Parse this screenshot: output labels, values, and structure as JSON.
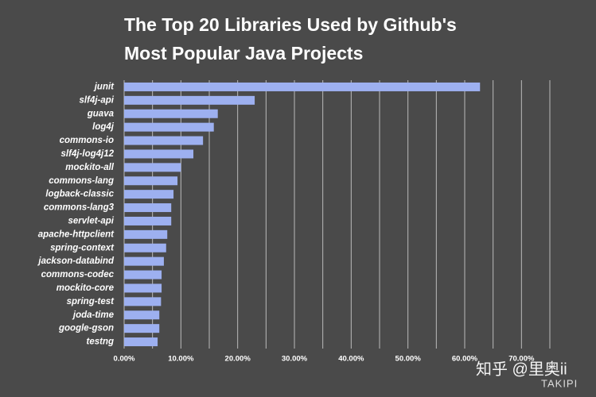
{
  "chart_data": {
    "type": "barh",
    "title": [
      "The Top 20 Libraries Used by Github's",
      "Most Popular Java Projects"
    ],
    "categories": [
      "junit",
      "slf4j-api",
      "guava",
      "log4j",
      "commons-io",
      "slf4j-log4j12",
      "mockito-all",
      "commons-lang",
      "logback-classic",
      "commons-lang3",
      "servlet-api",
      "apache-httpclient",
      "spring-context",
      "jackson-databind",
      "commons-codec",
      "mockito-core",
      "spring-test",
      "joda-time",
      "google-gson",
      "testng"
    ],
    "values": [
      62.7,
      23.0,
      16.5,
      15.8,
      13.9,
      12.2,
      10.0,
      9.4,
      8.7,
      8.3,
      8.3,
      7.6,
      7.4,
      7.0,
      6.6,
      6.6,
      6.5,
      6.2,
      6.2,
      5.9
    ],
    "color": "#9db0f0",
    "xlim": [
      0,
      75
    ],
    "xticks": [
      {
        "value": 0,
        "label": "0.00%"
      },
      {
        "value": 10,
        "label": "10.00%"
      },
      {
        "value": 20,
        "label": "20.00%"
      },
      {
        "value": 30,
        "label": "30.00%"
      },
      {
        "value": 40,
        "label": "40.00%"
      },
      {
        "value": 50,
        "label": "50.00%"
      },
      {
        "value": 60,
        "label": "60.00%"
      },
      {
        "value": 70,
        "label": "70.00%"
      }
    ],
    "xminor": [
      5,
      15,
      25,
      35,
      45,
      55,
      65,
      75
    ],
    "grid": true,
    "watermark": "知乎 @里奥ii",
    "logo": "TAKIPI"
  }
}
